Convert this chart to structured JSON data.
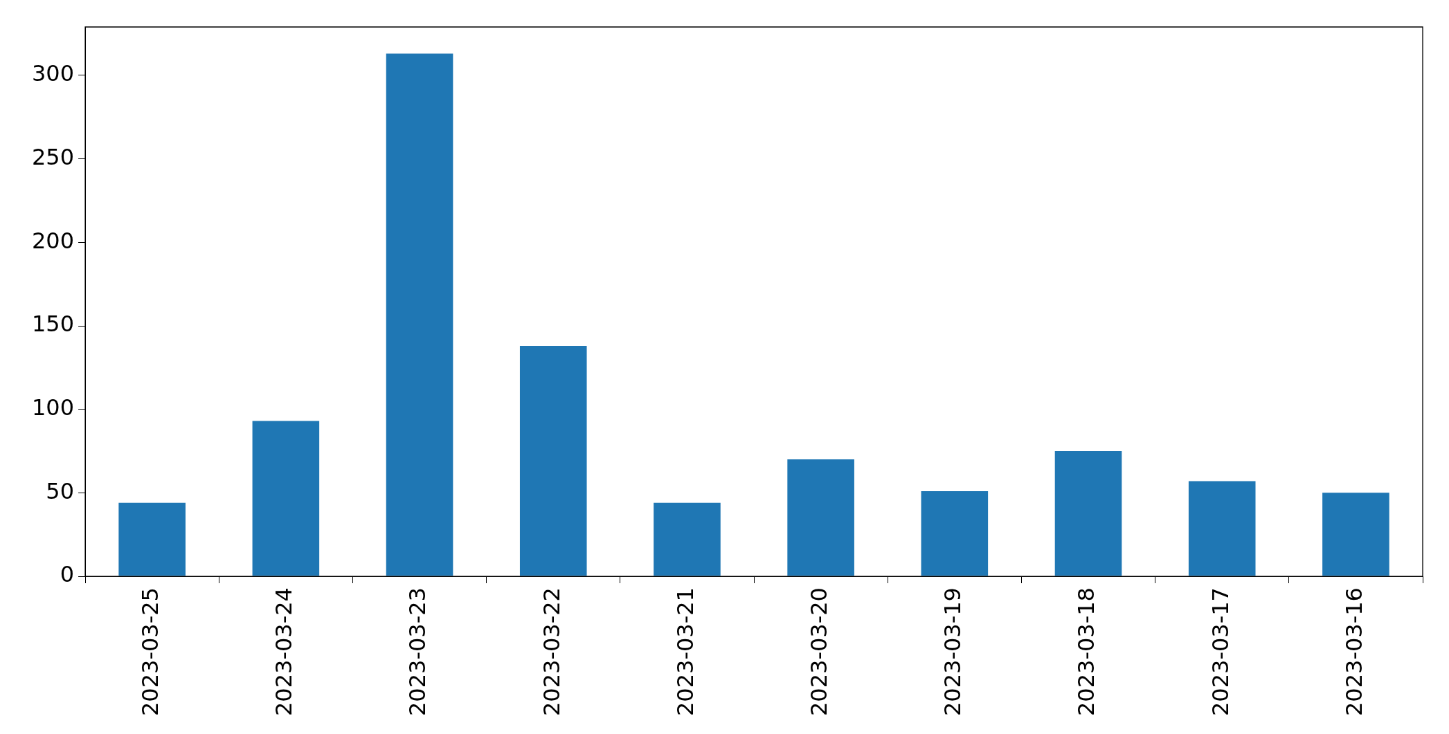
{
  "chart_data": {
    "type": "bar",
    "categories": [
      "2023-03-25",
      "2023-03-24",
      "2023-03-23",
      "2023-03-22",
      "2023-03-21",
      "2023-03-20",
      "2023-03-19",
      "2023-03-18",
      "2023-03-17",
      "2023-03-16"
    ],
    "values": [
      44,
      93,
      313,
      138,
      44,
      70,
      51,
      75,
      57,
      50
    ],
    "color": "#1f77b4",
    "ylim": [
      0,
      329
    ],
    "yticks": [
      0,
      50,
      100,
      150,
      200,
      250,
      300
    ],
    "grid": false,
    "legend": false
  }
}
